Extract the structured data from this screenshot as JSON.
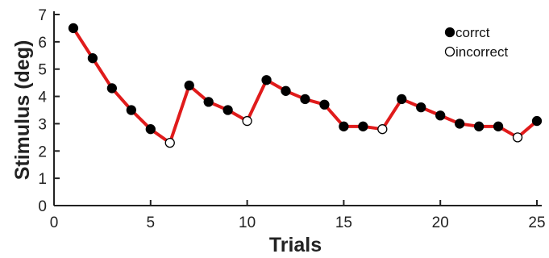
{
  "chart_data": {
    "type": "line",
    "title": "",
    "xlabel": "Trials",
    "ylabel": "Stimulus (deg)",
    "xlim": [
      0,
      25
    ],
    "ylim": [
      0,
      7
    ],
    "xticks": [
      0,
      5,
      10,
      15,
      20,
      25
    ],
    "yticks": [
      0,
      1,
      2,
      3,
      4,
      5,
      6,
      7
    ],
    "grid": false,
    "legend_position": "top-right",
    "line_color": "#e01b1b",
    "legend": [
      {
        "label": "corrct",
        "marker": "filled"
      },
      {
        "label": "incorrect",
        "marker": "open"
      }
    ],
    "series": [
      {
        "points": [
          {
            "x": 1,
            "y": 6.5,
            "correct": true
          },
          {
            "x": 2,
            "y": 5.4,
            "correct": true
          },
          {
            "x": 3,
            "y": 4.3,
            "correct": true
          },
          {
            "x": 4,
            "y": 3.5,
            "correct": true
          },
          {
            "x": 5,
            "y": 2.8,
            "correct": true
          },
          {
            "x": 6,
            "y": 2.3,
            "correct": false
          },
          {
            "x": 7,
            "y": 4.4,
            "correct": true
          },
          {
            "x": 8,
            "y": 3.8,
            "correct": true
          },
          {
            "x": 9,
            "y": 3.5,
            "correct": true
          },
          {
            "x": 10,
            "y": 3.1,
            "correct": false
          },
          {
            "x": 11,
            "y": 4.6,
            "correct": true
          },
          {
            "x": 12,
            "y": 4.2,
            "correct": true
          },
          {
            "x": 13,
            "y": 3.9,
            "correct": true
          },
          {
            "x": 14,
            "y": 3.7,
            "correct": true
          },
          {
            "x": 15,
            "y": 2.9,
            "correct": true
          },
          {
            "x": 16,
            "y": 2.9,
            "correct": true
          },
          {
            "x": 17,
            "y": 2.8,
            "correct": false
          },
          {
            "x": 18,
            "y": 3.9,
            "correct": true
          },
          {
            "x": 19,
            "y": 3.6,
            "correct": true
          },
          {
            "x": 20,
            "y": 3.3,
            "correct": true
          },
          {
            "x": 21,
            "y": 3.0,
            "correct": true
          },
          {
            "x": 22,
            "y": 2.9,
            "correct": true
          },
          {
            "x": 23,
            "y": 2.9,
            "correct": true
          },
          {
            "x": 24,
            "y": 2.5,
            "correct": false
          },
          {
            "x": 25,
            "y": 3.1,
            "correct": true
          }
        ]
      }
    ]
  }
}
